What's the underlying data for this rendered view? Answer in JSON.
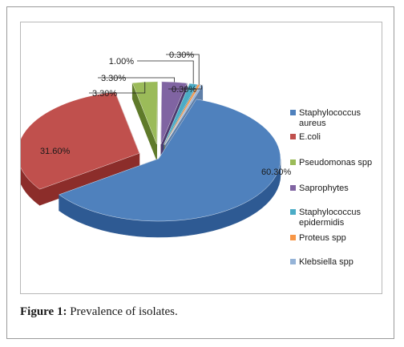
{
  "caption": {
    "label": "Figure 1:",
    "text": " Prevalence of isolates."
  },
  "chart_data": {
    "type": "pie",
    "title": "",
    "slices": [
      {
        "name": "Staphylococcus aureus",
        "value": 60.3,
        "label": "60.30%",
        "color": "#4f81bd",
        "side": "#2e5a93"
      },
      {
        "name": "E.coli",
        "value": 31.6,
        "label": "31.60%",
        "color": "#c0504d",
        "side": "#8c2d2a"
      },
      {
        "name": "Pseudomonas spp",
        "value": 3.3,
        "label": "3.30%",
        "color": "#9bbb59",
        "side": "#5f7a2a"
      },
      {
        "name": "Saprophytes",
        "value": 3.3,
        "label": "3.30%",
        "color": "#8064a2",
        "side": "#4e3a6e"
      },
      {
        "name": "Staphylococcus epidermidis",
        "value": 1.0,
        "label": "1.00%",
        "color": "#4bacc6",
        "side": "#2b7285"
      },
      {
        "name": "Proteus spp",
        "value": 0.3,
        "label": "0.30%",
        "color": "#f79646",
        "side": "#b25f1b"
      },
      {
        "name": "Klebsiella spp",
        "value": 0.3,
        "label": "0.30%",
        "color": "#95b3d7",
        "side": "#5f7fa8"
      }
    ],
    "legend": {
      "placement": "right",
      "entries": [
        "Staphylococcus aureus",
        "E.coli",
        "Pseudomonas spp",
        "Saprophytes",
        "Staphylococcus epidermidis",
        "Proteus spp",
        "Klebsiella spp"
      ]
    }
  }
}
